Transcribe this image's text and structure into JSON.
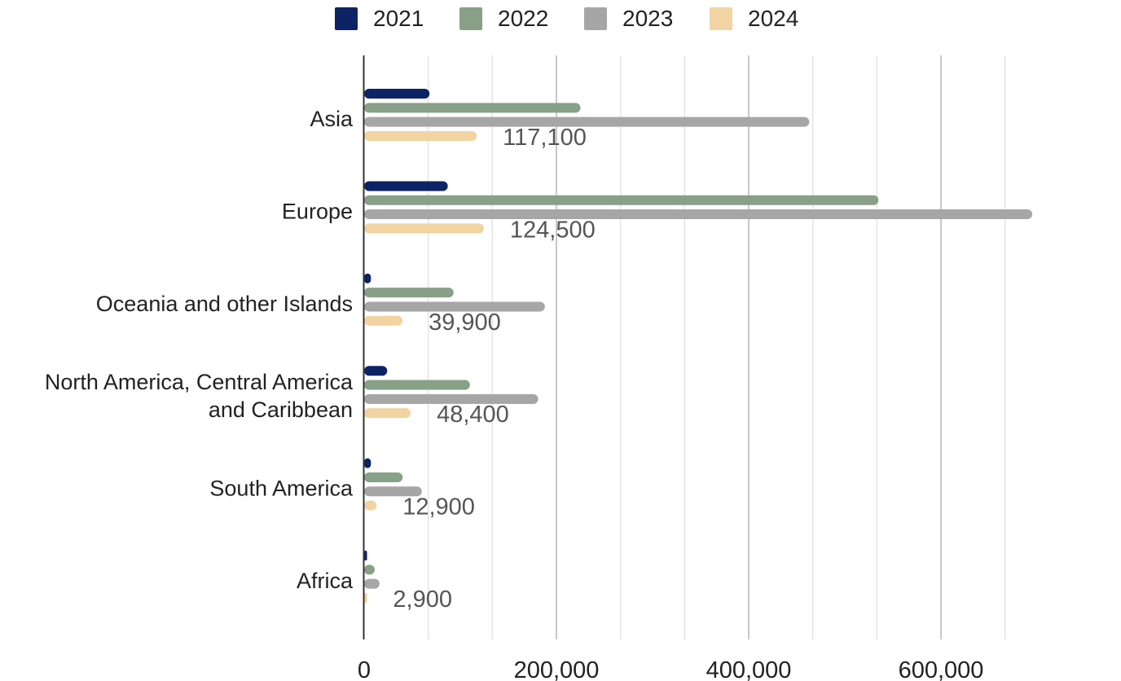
{
  "chart_data": {
    "type": "bar",
    "orientation": "horizontal",
    "title": "",
    "xlabel": "",
    "ylabel": "",
    "categories": [
      [
        "Asia"
      ],
      [
        "Europe"
      ],
      [
        "Oceania and other Islands"
      ],
      [
        "North America, Central America",
        "and Caribbean"
      ],
      [
        "South America"
      ],
      [
        "Africa"
      ]
    ],
    "series": [
      {
        "name": "2021",
        "color": "#0d2366",
        "values": [
          68000,
          87000,
          7000,
          24000,
          7000,
          3000
        ]
      },
      {
        "name": "2022",
        "color": "#87a087",
        "values": [
          225000,
          535000,
          93000,
          110000,
          40000,
          11000
        ]
      },
      {
        "name": "2023",
        "color": "#a6a6a6",
        "values": [
          463000,
          695000,
          188000,
          181000,
          60000,
          16000
        ]
      },
      {
        "name": "2024",
        "color": "#f2d3a2",
        "values": [
          117100,
          124500,
          39900,
          48400,
          12900,
          2900
        ]
      }
    ],
    "data_labels": {
      "series": "2024",
      "values": [
        "117,100",
        "124,500",
        "39,900",
        "48,400",
        "12,900",
        "2,900"
      ]
    },
    "xlim": [
      0,
      730000
    ],
    "x_ticks": [
      0,
      200000,
      400000,
      600000
    ],
    "x_tick_labels": [
      "0",
      "200,000",
      "400,000",
      "600,000"
    ],
    "minor_gridline_step": 66666.67,
    "grid": true,
    "legend_position": "top"
  }
}
